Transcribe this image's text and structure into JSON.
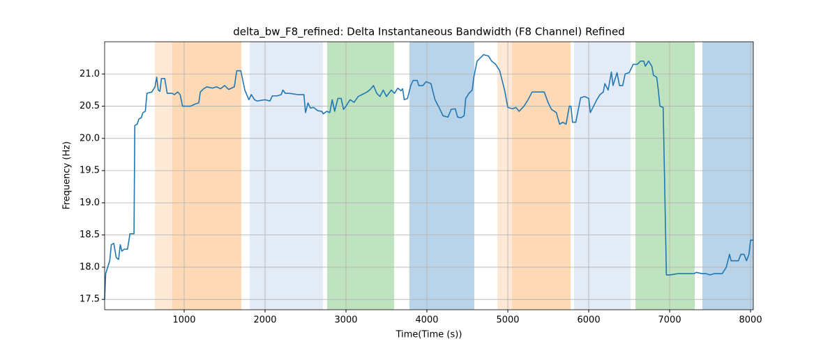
{
  "chart_data": {
    "type": "line",
    "title": "delta_bw_F8_refined: Delta Instantaneous Bandwidth (F8 Channel) Refined",
    "x_label": "Time(Time (s))",
    "y_label": "Frequency (Hz)",
    "xlim": [
      17,
      8034
    ],
    "ylim": [
      17.34,
      21.5
    ],
    "xticks": [
      1000,
      2000,
      3000,
      4000,
      5000,
      6000,
      7000,
      8000
    ],
    "yticks": [
      {
        "value": 17.5,
        "label": "17.5"
      },
      {
        "value": 18,
        "label": "18.0"
      },
      {
        "value": 18.5,
        "label": "18.5"
      },
      {
        "value": 19,
        "label": "19.0"
      },
      {
        "value": 19.5,
        "label": "19.5"
      },
      {
        "value": 20,
        "label": "20.0"
      },
      {
        "value": 20.5,
        "label": "20.5"
      },
      {
        "value": 21,
        "label": "21.0"
      }
    ],
    "grid": true,
    "spans": [
      {
        "start": 638,
        "end": 853,
        "color": "#fee8d6"
      },
      {
        "start": 853,
        "end": 1707,
        "color": "#fdd9b5"
      },
      {
        "start": 1810,
        "end": 2716,
        "color": "#e3ebf6"
      },
      {
        "start": 2767,
        "end": 3595,
        "color": "#c0e3bf"
      },
      {
        "start": 3784,
        "end": 4586,
        "color": "#b9d4e9"
      },
      {
        "start": 4871,
        "end": 5052,
        "color": "#fee8d6"
      },
      {
        "start": 5052,
        "end": 5776,
        "color": "#fdd9b5"
      },
      {
        "start": 5819,
        "end": 6517,
        "color": "#e3ebf6"
      },
      {
        "start": 6578,
        "end": 7310,
        "color": "#c0e3bf"
      },
      {
        "start": 7405,
        "end": 8034,
        "color": "#b9d4e9"
      }
    ],
    "x": [
      17,
      30,
      80,
      100,
      130,
      160,
      190,
      210,
      230,
      260,
      300,
      330,
      380,
      390,
      420,
      440,
      470,
      490,
      520,
      540,
      600,
      640,
      660,
      680,
      700,
      720,
      760,
      790,
      850,
      880,
      920,
      950,
      980,
      1080,
      1130,
      1180,
      1200,
      1240,
      1280,
      1350,
      1400,
      1450,
      1500,
      1550,
      1620,
      1650,
      1700,
      1750,
      1800,
      1830,
      1870,
      1900,
      2000,
      2060,
      2090,
      2150,
      2200,
      2220,
      2250,
      2300,
      2400,
      2480,
      2500,
      2530,
      2560,
      2600,
      2650,
      2700,
      2720,
      2760,
      2800,
      2830,
      2860,
      2900,
      2940,
      2970,
      3000,
      3050,
      3100,
      3150,
      3200,
      3260,
      3300,
      3340,
      3380,
      3420,
      3460,
      3500,
      3560,
      3600,
      3640,
      3680,
      3700,
      3720,
      3760,
      3800,
      3830,
      3880,
      3900,
      3950,
      3990,
      4050,
      4100,
      4150,
      4200,
      4260,
      4300,
      4350,
      4380,
      4420,
      4460,
      4480,
      4520,
      4560,
      4580,
      4620,
      4660,
      4700,
      4760,
      4800,
      4850,
      4900,
      4960,
      5000,
      5060,
      5100,
      5140,
      5200,
      5250,
      5300,
      5450,
      5500,
      5540,
      5600,
      5640,
      5680,
      5720,
      5760,
      5780,
      5800,
      5840,
      5900,
      5950,
      6000,
      6020,
      6060,
      6100,
      6140,
      6180,
      6200,
      6240,
      6280,
      6300,
      6350,
      6380,
      6420,
      6450,
      6500,
      6550,
      6600,
      6640,
      6680,
      6700,
      6740,
      6780,
      6800,
      6840,
      6860,
      6880,
      6920,
      6960,
      7000,
      7100,
      7200,
      7300,
      7330,
      7400,
      7450,
      7500,
      7550,
      7600,
      7650,
      7700,
      7740,
      7760,
      7850,
      7880,
      7920,
      7950,
      7980,
      8000,
      8034
    ],
    "series": [
      {
        "color": "#1f77b4",
        "values": [
          17.5,
          17.9,
          18.1,
          18.35,
          18.37,
          18.15,
          18.12,
          18.35,
          18.25,
          18.28,
          18.28,
          18.52,
          18.52,
          20.2,
          20.22,
          20.3,
          20.32,
          20.4,
          20.42,
          20.7,
          20.72,
          20.8,
          20.95,
          20.75,
          20.73,
          20.93,
          20.93,
          20.7,
          20.7,
          20.68,
          20.72,
          20.68,
          20.5,
          20.5,
          20.53,
          20.55,
          20.72,
          20.77,
          20.8,
          20.78,
          20.8,
          20.77,
          20.82,
          20.76,
          20.8,
          21.05,
          21.05,
          20.75,
          20.6,
          20.68,
          20.6,
          20.58,
          20.6,
          20.58,
          20.66,
          20.66,
          20.68,
          20.75,
          20.7,
          20.7,
          20.68,
          20.68,
          20.4,
          20.55,
          20.47,
          20.48,
          20.43,
          20.42,
          20.38,
          20.42,
          20.4,
          20.6,
          20.42,
          20.62,
          20.62,
          20.45,
          20.5,
          20.6,
          20.56,
          20.65,
          20.68,
          20.72,
          20.76,
          20.82,
          20.7,
          20.65,
          20.75,
          20.65,
          20.75,
          20.7,
          20.78,
          20.74,
          20.77,
          20.6,
          20.62,
          20.82,
          20.9,
          20.9,
          20.82,
          20.82,
          20.88,
          20.85,
          20.6,
          20.48,
          20.35,
          20.33,
          20.45,
          20.46,
          20.33,
          20.32,
          20.35,
          20.62,
          20.7,
          20.75,
          20.95,
          21.2,
          21.25,
          21.3,
          21.28,
          21.2,
          21.15,
          21.05,
          20.75,
          20.48,
          20.46,
          20.48,
          20.42,
          20.5,
          20.6,
          20.72,
          20.72,
          20.55,
          20.45,
          20.4,
          20.22,
          20.25,
          20.22,
          20.5,
          20.5,
          20.25,
          20.25,
          20.63,
          20.65,
          20.62,
          20.4,
          20.5,
          20.6,
          20.68,
          20.72,
          20.85,
          20.75,
          21.03,
          20.82,
          21.02,
          20.82,
          20.82,
          21.0,
          21.02,
          21.15,
          21.15,
          21.2,
          21.2,
          21.12,
          21.2,
          21.12,
          20.98,
          20.95,
          20.75,
          20.5,
          20.48,
          17.88,
          17.88,
          17.9,
          17.9,
          17.9,
          17.92,
          17.9,
          17.9,
          17.88,
          17.9,
          17.9,
          17.9,
          18.0,
          18.2,
          18.1,
          18.1,
          18.2,
          18.2,
          18.1,
          18.2,
          18.42,
          18.42
        ]
      }
    ]
  }
}
